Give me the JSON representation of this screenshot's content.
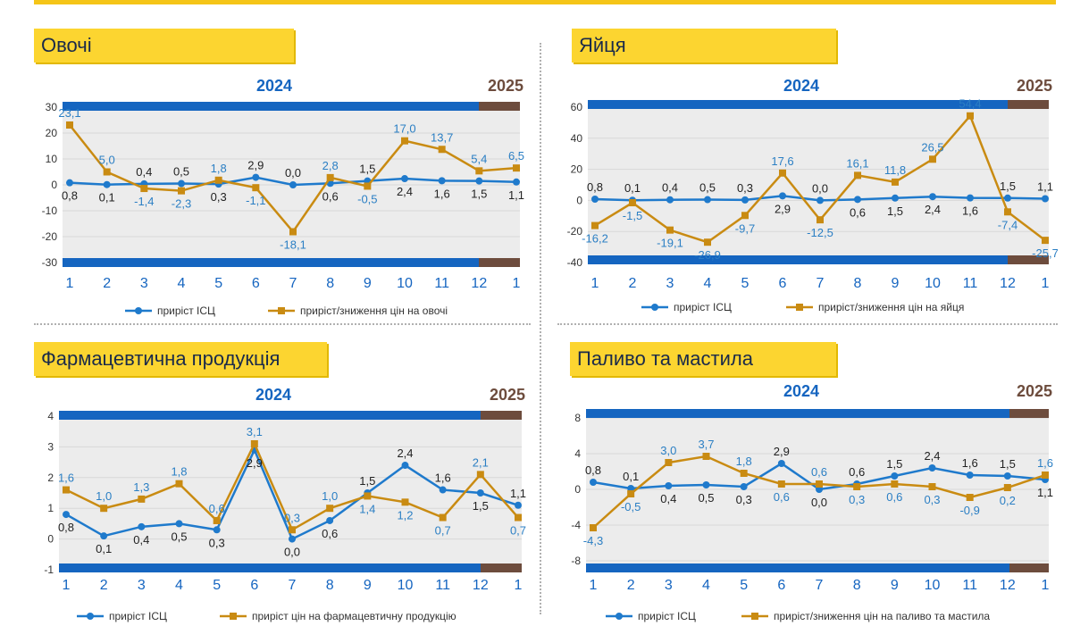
{
  "colors": {
    "cpi": "#1f7acc",
    "goods": "#c98b12",
    "bar2024": "#1565c0",
    "bar2025": "#6d4c3d",
    "plot_bg": "#ececec",
    "title_bg": "#fcd530"
  },
  "chart_data": [
    {
      "type": "line",
      "title": "Овочі",
      "year_labels": [
        "2024",
        "2025"
      ],
      "categories": [
        "1",
        "2",
        "3",
        "4",
        "5",
        "6",
        "7",
        "8",
        "9",
        "10",
        "11",
        "12",
        "1"
      ],
      "ylim": [
        -30,
        30
      ],
      "yticks": [
        "30",
        "20",
        "10",
        "0",
        "-10",
        "-20",
        "-30"
      ],
      "legend": [
        "приріст ІСЦ",
        "приріст/зниження цін на овочі"
      ],
      "series": [
        {
          "name": "приріст ІСЦ",
          "values": [
            0.8,
            0.1,
            0.4,
            0.5,
            0.3,
            2.9,
            0.0,
            0.6,
            1.5,
            2.4,
            1.6,
            1.5,
            1.1
          ],
          "labels": [
            "0,8",
            "0,1",
            "0,4",
            "0,5",
            "0,3",
            "2,9",
            "0,0",
            "0,6",
            "1,5",
            "2,4",
            "1,6",
            "1,5",
            "1,1"
          ]
        },
        {
          "name": "приріст/зниження цін на овочі",
          "values": [
            23.1,
            5.0,
            -1.4,
            -2.3,
            1.8,
            -1.1,
            -18.1,
            2.8,
            -0.5,
            17.0,
            13.7,
            5.4,
            6.5
          ],
          "labels": [
            "23,1",
            "5,0",
            "-1,4",
            "-2,3",
            "1,8",
            "-1,1",
            "-18,1",
            "2,8",
            "-0,5",
            "17,0",
            "13,7",
            "5,4",
            "6,5"
          ]
        }
      ]
    },
    {
      "type": "line",
      "title": "Яйця",
      "year_labels": [
        "2024",
        "2025"
      ],
      "categories": [
        "1",
        "2",
        "3",
        "4",
        "5",
        "6",
        "7",
        "8",
        "9",
        "10",
        "11",
        "12",
        "1"
      ],
      "ylim": [
        -40,
        60
      ],
      "yticks": [
        "60",
        "40",
        "20",
        "0",
        "-20",
        "-40"
      ],
      "legend": [
        "приріст ІСЦ",
        "приріст/зниження цін на яйця"
      ],
      "series": [
        {
          "name": "приріст ІСЦ",
          "values": [
            0.8,
            0.1,
            0.4,
            0.5,
            0.3,
            2.9,
            0.0,
            0.6,
            1.5,
            2.4,
            1.6,
            1.5,
            1.1
          ],
          "labels": [
            "0,8",
            "0,1",
            "0,4",
            "0,5",
            "0,3",
            "2,9",
            "0,0",
            "0,6",
            "1,5",
            "2,4",
            "1,6",
            "1,5",
            "1,1"
          ]
        },
        {
          "name": "приріст/зниження цін на яйця",
          "values": [
            -16.2,
            -1.5,
            -19.1,
            -26.9,
            -9.7,
            17.6,
            -12.5,
            16.1,
            11.8,
            26.5,
            54.4,
            -7.4,
            -25.7
          ],
          "labels": [
            "-16,2",
            "-1,5",
            "-19,1",
            "-26,9",
            "-9,7",
            "17,6",
            "-12,5",
            "16,1",
            "11,8",
            "26,5",
            "54,4",
            "-7,4",
            "-25,7"
          ]
        }
      ]
    },
    {
      "type": "line",
      "title": "Фармацевтична продукція",
      "year_labels": [
        "2024",
        "2025"
      ],
      "categories": [
        "1",
        "2",
        "3",
        "4",
        "5",
        "6",
        "7",
        "8",
        "9",
        "10",
        "11",
        "12",
        "1"
      ],
      "ylim": [
        -1,
        4
      ],
      "yticks": [
        "4",
        "3",
        "2",
        "1",
        "0",
        "-1"
      ],
      "legend": [
        "приріст ІСЦ",
        "приріст цін на фармацевтичну продукцію"
      ],
      "series": [
        {
          "name": "приріст ІСЦ",
          "values": [
            0.8,
            0.1,
            0.4,
            0.5,
            0.3,
            2.9,
            0.0,
            0.6,
            1.5,
            2.4,
            1.6,
            1.5,
            1.1
          ],
          "labels": [
            "0,8",
            "0,1",
            "0,4",
            "0,5",
            "0,3",
            "2,9",
            "0,0",
            "0,6",
            "1,5",
            "2,4",
            "1,6",
            "1,5",
            "1,1"
          ]
        },
        {
          "name": "приріст цін на фармацевтичну продукцію",
          "values": [
            1.6,
            1.0,
            1.3,
            1.8,
            0.6,
            3.1,
            0.3,
            1.0,
            1.4,
            1.2,
            0.7,
            2.1,
            0.7
          ],
          "labels": [
            "1,6",
            "1,0",
            "1,3",
            "1,8",
            "0,6",
            "3,1",
            "0,3",
            "1,0",
            "1,4",
            "1,2",
            "0,7",
            "2,1",
            "0,7"
          ]
        }
      ]
    },
    {
      "type": "line",
      "title": "Паливо та мастила",
      "year_labels": [
        "2024",
        "2025"
      ],
      "categories": [
        "1",
        "2",
        "3",
        "4",
        "5",
        "6",
        "7",
        "8",
        "9",
        "10",
        "11",
        "12",
        "1"
      ],
      "ylim": [
        -8,
        8
      ],
      "yticks": [
        "8",
        "4",
        "0",
        "-4",
        "-8"
      ],
      "legend": [
        "приріст ІСЦ",
        "приріст/зниження цін на паливо та мастила"
      ],
      "series": [
        {
          "name": "приріст ІСЦ",
          "values": [
            0.8,
            0.1,
            0.4,
            0.5,
            0.3,
            2.9,
            0.0,
            0.6,
            1.5,
            2.4,
            1.6,
            1.5,
            1.1
          ],
          "labels": [
            "0,8",
            "0,1",
            "0,4",
            "0,5",
            "0,3",
            "2,9",
            "0,0",
            "0,6",
            "1,5",
            "2,4",
            "1,6",
            "1,5",
            "1,1"
          ]
        },
        {
          "name": "приріст/зниження цін на паливо та мастила",
          "values": [
            -4.3,
            -0.5,
            3.0,
            3.7,
            1.8,
            0.6,
            0.6,
            0.3,
            0.6,
            0.3,
            -0.9,
            0.2,
            1.6
          ],
          "labels": [
            "-4,3",
            "-0,5",
            "3,0",
            "3,7",
            "1,8",
            "0,6",
            "0,6",
            "0,3",
            "0,6",
            "0,3",
            "-0,9",
            "0,2",
            "1,6"
          ]
        }
      ]
    }
  ]
}
